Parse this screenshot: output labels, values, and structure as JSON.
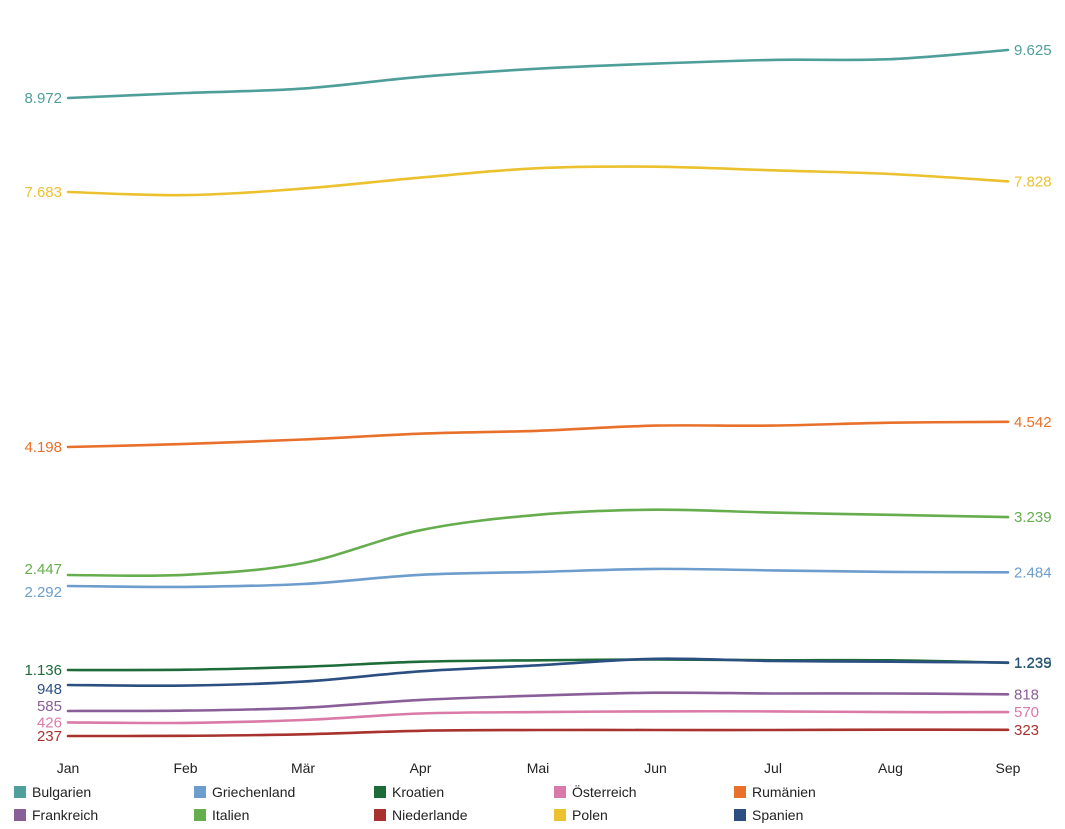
{
  "chart_data": {
    "type": "line",
    "title": "",
    "xlabel": "",
    "ylabel": "",
    "categories": [
      "Jan",
      "Feb",
      "Mär",
      "Apr",
      "Mai",
      "Jun",
      "Jul",
      "Aug",
      "Sep"
    ],
    "grid": false,
    "legend_position": "bottom",
    "series": [
      {
        "name": "Bulgarien",
        "color": "#4E9E9A",
        "values": [
          8972,
          9040,
          9100,
          9260,
          9370,
          9440,
          9490,
          9500,
          9625
        ],
        "start_label": "8.972",
        "end_label": "9.625"
      },
      {
        "name": "Polen",
        "color": "#EBC12E",
        "values": [
          7683,
          7640,
          7730,
          7880,
          8010,
          8030,
          7980,
          7930,
          7828
        ],
        "start_label": "7.683",
        "end_label": "7.828"
      },
      {
        "name": "Rumänien",
        "color": "#E8702A",
        "values": [
          4198,
          4240,
          4300,
          4380,
          4420,
          4490,
          4490,
          4530,
          4542
        ],
        "start_label": "4.198",
        "end_label": "4.542"
      },
      {
        "name": "Italien",
        "color": "#66AD4E",
        "values": [
          2447,
          2450,
          2610,
          3060,
          3270,
          3340,
          3300,
          3270,
          3239
        ],
        "start_label": "2.447",
        "end_label": "3.239"
      },
      {
        "name": "Griechenland",
        "color": "#6C9DCC",
        "values": [
          2292,
          2280,
          2320,
          2450,
          2490,
          2530,
          2510,
          2490,
          2484
        ],
        "start_label": "2.292",
        "end_label": "2.484"
      },
      {
        "name": "Kroatien",
        "color": "#1E6B3A",
        "values": [
          1136,
          1140,
          1180,
          1250,
          1270,
          1280,
          1270,
          1270,
          1235
        ],
        "start_label": "1.136",
        "end_label": "1.235"
      },
      {
        "name": "Spanien",
        "color": "#2B4F81",
        "values": [
          948,
          940,
          990,
          1120,
          1200,
          1290,
          1260,
          1250,
          1239
        ],
        "start_label": "948",
        "end_label": "1.239"
      },
      {
        "name": "Frankreich",
        "color": "#8A5E98",
        "values": [
          585,
          590,
          630,
          740,
          800,
          840,
          830,
          830,
          818
        ],
        "start_label": "585",
        "end_label": "818"
      },
      {
        "name": "Österreich",
        "color": "#D97AA8",
        "values": [
          426,
          420,
          460,
          550,
          570,
          580,
          580,
          570,
          570
        ],
        "start_label": "426",
        "end_label": "570"
      },
      {
        "name": "Niederlande",
        "color": "#A8322D",
        "values": [
          237,
          240,
          260,
          310,
          320,
          320,
          320,
          325,
          323
        ],
        "start_label": "237",
        "end_label": "323"
      }
    ],
    "legend": [
      {
        "name": "Bulgarien",
        "color": "#4E9E9A"
      },
      {
        "name": "Griechenland",
        "color": "#6C9DCC"
      },
      {
        "name": "Kroatien",
        "color": "#1E6B3A"
      },
      {
        "name": "Österreich",
        "color": "#D97AA8"
      },
      {
        "name": "Rumänien",
        "color": "#E8702A"
      },
      {
        "name": "Frankreich",
        "color": "#8A5E98"
      },
      {
        "name": "Italien",
        "color": "#66AD4E"
      },
      {
        "name": "Niederlande",
        "color": "#A8322D"
      },
      {
        "name": "Polen",
        "color": "#EBC12E"
      },
      {
        "name": "Spanien",
        "color": "#2B4F81"
      }
    ]
  }
}
